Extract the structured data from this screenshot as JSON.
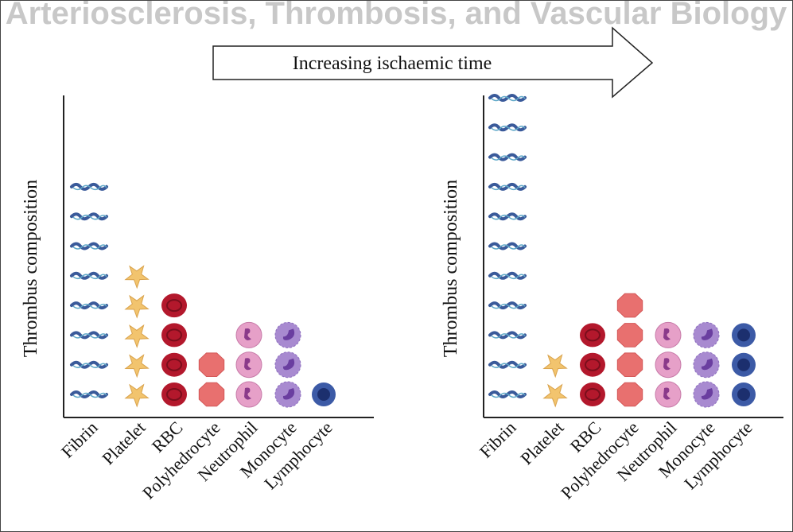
{
  "watermark": "Arteriosclerosis, Thrombosis, and Vascular Biology",
  "arrow_label": "Increasing ischaemic time",
  "chart_data": [
    {
      "type": "pictogram",
      "ylabel": "Thrombus composition",
      "categories": [
        "Fibrin",
        "Platelet",
        "RBC",
        "Polyhedrocyte",
        "Neutrophil",
        "Monocyte",
        "Lymphocyte"
      ],
      "values": [
        8,
        5,
        4,
        2,
        3,
        3,
        1
      ],
      "colors": [
        "#3a5a9a",
        "#f2c46e",
        "#b3182c",
        "#e8706f",
        "#e6a0c8",
        "#a88ad0",
        "#3c5aa6"
      ]
    },
    {
      "type": "pictogram",
      "ylabel": "Thrombus composition",
      "categories": [
        "Fibrin",
        "Platelet",
        "RBC",
        "Polyhedrocyte",
        "Neutrophil",
        "Monocyte",
        "Lymphocyte"
      ],
      "values": [
        11,
        2,
        3,
        4,
        3,
        3,
        3
      ],
      "colors": [
        "#3a5a9a",
        "#f2c46e",
        "#b3182c",
        "#e8706f",
        "#e6a0c8",
        "#a88ad0",
        "#3c5aa6"
      ]
    }
  ]
}
